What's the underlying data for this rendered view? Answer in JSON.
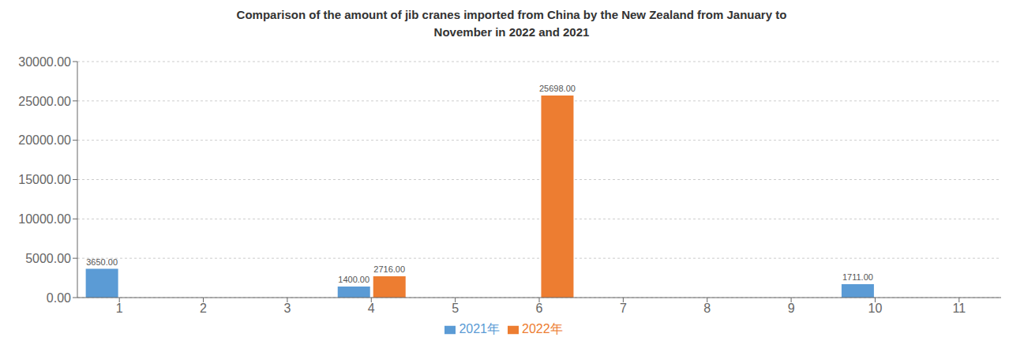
{
  "chart_data": {
    "type": "bar",
    "title": "Comparison of the amount of jib cranes imported from China by the New Zealand from January to\nNovember in 2022 and 2021",
    "categories": [
      "1",
      "2",
      "3",
      "4",
      "5",
      "6",
      "7",
      "8",
      "9",
      "10",
      "11"
    ],
    "series": [
      {
        "name": "2021年",
        "color": "#5B9BD5",
        "values": [
          3650,
          0,
          0,
          1400,
          0,
          0,
          0,
          0,
          0,
          1711,
          0
        ],
        "value_labels": [
          "3650.00",
          null,
          null,
          "1400.00",
          null,
          null,
          null,
          null,
          null,
          "1711.00",
          null
        ]
      },
      {
        "name": "2022年",
        "color": "#ED7D31",
        "values": [
          0,
          0,
          0,
          2716,
          0,
          25698,
          0,
          0,
          0,
          0,
          0
        ],
        "value_labels": [
          null,
          null,
          null,
          "2716.00",
          null,
          "25698.00",
          null,
          null,
          null,
          null,
          null
        ]
      }
    ],
    "ylim": [
      0,
      30000
    ],
    "yticks": [
      {
        "value": 0,
        "label": "0.00"
      },
      {
        "value": 5000,
        "label": "5000.00"
      },
      {
        "value": 10000,
        "label": "10000.00"
      },
      {
        "value": 15000,
        "label": "15000.00"
      },
      {
        "value": 20000,
        "label": "20000.00"
      },
      {
        "value": 25000,
        "label": "25000.00"
      },
      {
        "value": 30000,
        "label": "30000.00"
      }
    ],
    "grid": true,
    "legend": "bottom",
    "data_labels": true
  }
}
